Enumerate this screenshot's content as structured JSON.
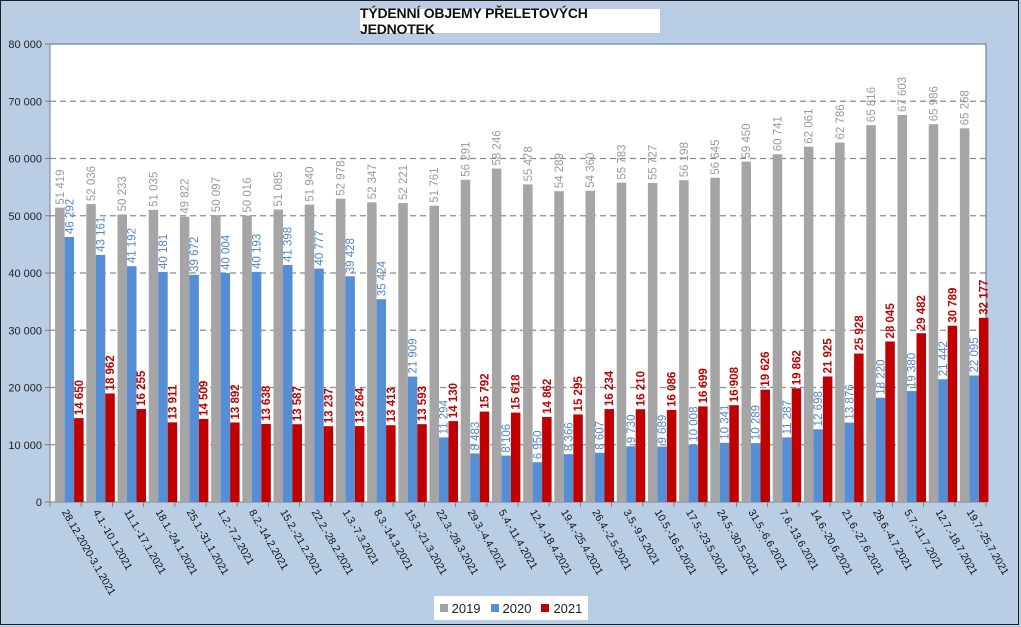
{
  "chart_data": {
    "type": "bar",
    "title": "TÝDENNÍ OBJEMY PŘELETOVÝCH JEDNOTEK",
    "xlabel": "",
    "ylabel": "",
    "ylim": [
      0,
      80000
    ],
    "yticks": [
      0,
      10000,
      20000,
      30000,
      40000,
      50000,
      60000,
      70000,
      80000
    ],
    "ytick_labels": [
      "0",
      "10 000",
      "20 000",
      "30 000",
      "40 000",
      "50 000",
      "60 000",
      "70 000",
      "80 000"
    ],
    "grid": "horizontal-dashed",
    "legend_position": "bottom",
    "categories": [
      "28.12.2020-3.1.2021",
      "4.1.-10.1.2021",
      "11.1.-17.1.2021",
      "18.1.-24.1.2021",
      "25.1.-31.1.2021",
      "1.2.-7.2.2021",
      "8.2.-14.2.2021",
      "15.2.-21.2.2021",
      "22.2.-28.2.2021",
      "1.3.-7.3.2021",
      "8.3.-14.3.2021",
      "15.3.-21.3.2021",
      "22.3.-28.3.2021",
      "29.3.-4.4.2021",
      "5.4.-11.4.2021",
      "12.4.-18.4.2021",
      "19.4.-25.4.2021",
      "26.4.-2.5.2021",
      "3.5.-9.5.2021",
      "10.5.-16.5.2021",
      "17.5.-23.5.2021",
      "24.5.-30.5.2021",
      "31.5.-6.6.2021",
      "7.6.-13.6.2021",
      "14.6.-20.6.2021",
      "21.6.-27.6.2021",
      "28.6.-4.7.2021",
      "5.7.-11.7.2021",
      "12.7.-18.7.2021",
      "19.7.-25.7.2021"
    ],
    "series": [
      {
        "name": "2019",
        "color": "#a5a5a5",
        "label_color": "#9a9a9a",
        "label_bold": false,
        "values": [
          51419,
          52036,
          50233,
          51035,
          49822,
          50097,
          50016,
          51085,
          51940,
          52978,
          52347,
          52221,
          51761,
          56291,
          58246,
          55478,
          54289,
          54360,
          55783,
          55727,
          56198,
          56645,
          59450,
          60741,
          62061,
          62786,
          65816,
          67603,
          65986,
          65268
        ]
      },
      {
        "name": "2020",
        "color": "#558ed5",
        "label_color": "#4f86cf",
        "label_bold": false,
        "values": [
          46292,
          43161,
          41192,
          40181,
          39672,
          40004,
          40193,
          41398,
          40777,
          39428,
          35424,
          21909,
          11294,
          8483,
          8106,
          6950,
          8366,
          8607,
          9730,
          9689,
          10008,
          10341,
          10289,
          11287,
          12698,
          13876,
          18220,
          19380,
          21442,
          22095
        ]
      },
      {
        "name": "2021",
        "color": "#c00000",
        "label_color": "#c00000",
        "label_bold": true,
        "values": [
          14650,
          18962,
          16255,
          13911,
          14509,
          13892,
          13638,
          13587,
          13237,
          13264,
          13413,
          13593,
          14130,
          15792,
          15618,
          14862,
          15295,
          16234,
          16210,
          16086,
          16699,
          16908,
          19626,
          19862,
          21925,
          25928,
          28045,
          29482,
          30789,
          32177
        ]
      }
    ]
  }
}
